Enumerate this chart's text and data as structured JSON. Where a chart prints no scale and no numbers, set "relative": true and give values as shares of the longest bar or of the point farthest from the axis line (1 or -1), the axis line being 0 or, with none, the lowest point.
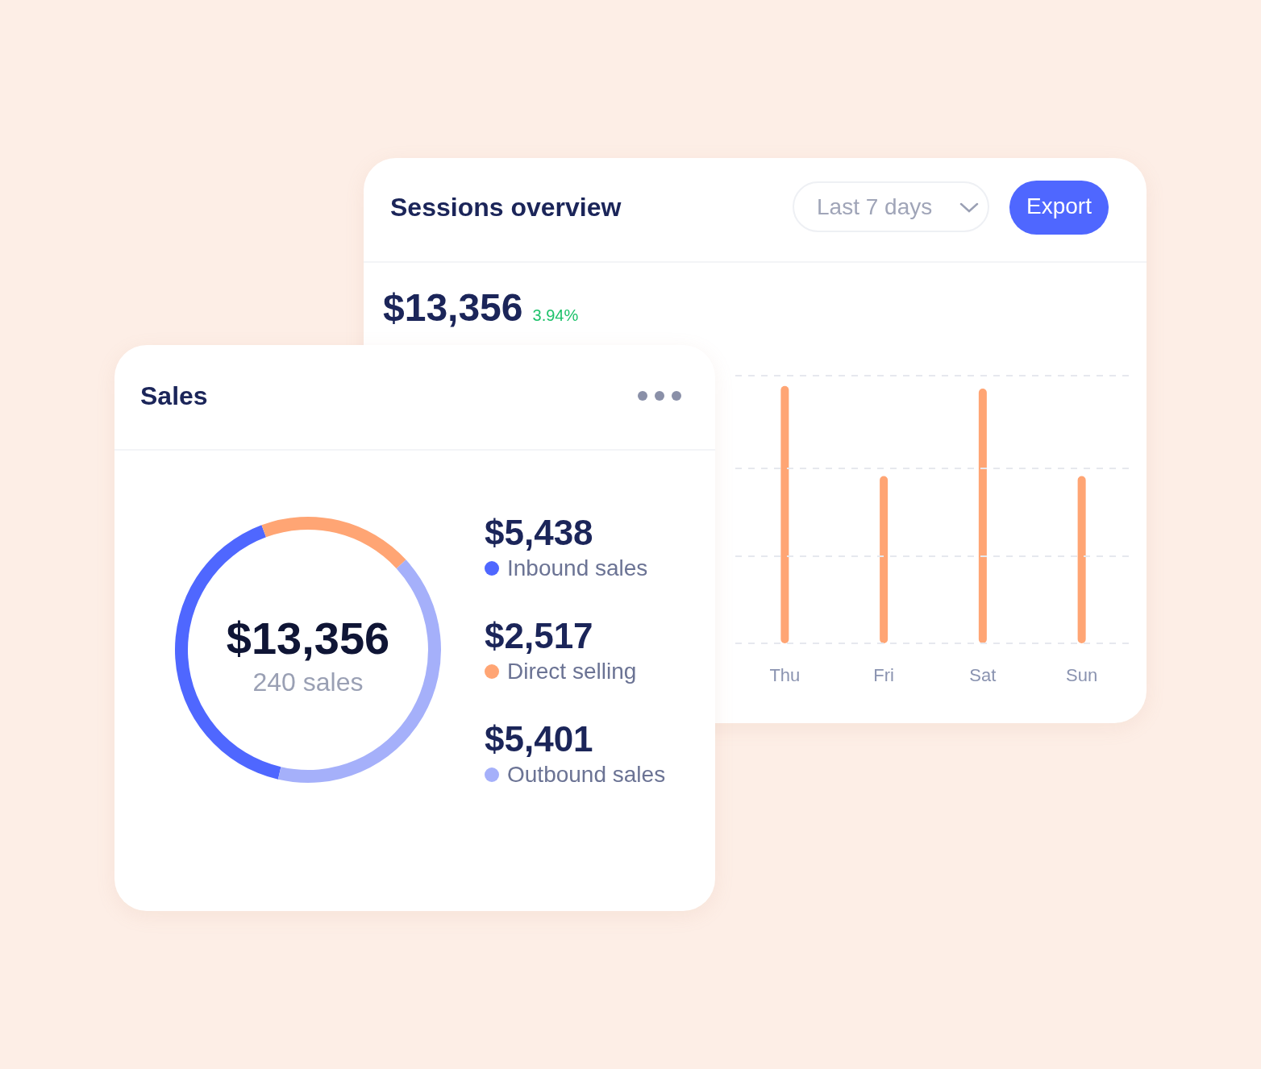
{
  "chart_data": [
    {
      "type": "bar",
      "title": "Sessions overview",
      "subtitle": "$13,356",
      "annotations": [
        "3.94%",
        "Last 7 days",
        "Export"
      ],
      "categories": [
        "Thu",
        "Fri",
        "Sat",
        "Sun"
      ],
      "values": [
        1,
        0.65,
        0.99,
        0.65
      ],
      "color": "#ffa574",
      "relative": true,
      "ref_lines": [
        {
          "axis": "y",
          "value": 0,
          "color": "#e6e8ee",
          "line_style": "dashed"
        },
        {
          "axis": "y",
          "value": 0.34,
          "color": "#e6e8ee",
          "line_style": "dashed"
        },
        {
          "axis": "y",
          "value": 0.68,
          "color": "#e6e8ee",
          "line_style": "dashed"
        },
        {
          "axis": "y",
          "value": 1.04,
          "color": "#e6e8ee",
          "line_style": "dashed"
        }
      ]
    },
    {
      "type": "donut",
      "title": "Sales",
      "annotations": [
        "$13,356",
        "240 sales"
      ],
      "categories": [
        "Inbound sales",
        "Direct selling",
        "Outbound sales"
      ],
      "values": [
        5438,
        2517,
        5401
      ],
      "colors": [
        "#4f67ff",
        "#ffa574",
        "#a5b0fa"
      ],
      "value_labels": [
        "$5,438",
        "$2,517",
        "$5,401"
      ],
      "legend": "right"
    }
  ]
}
